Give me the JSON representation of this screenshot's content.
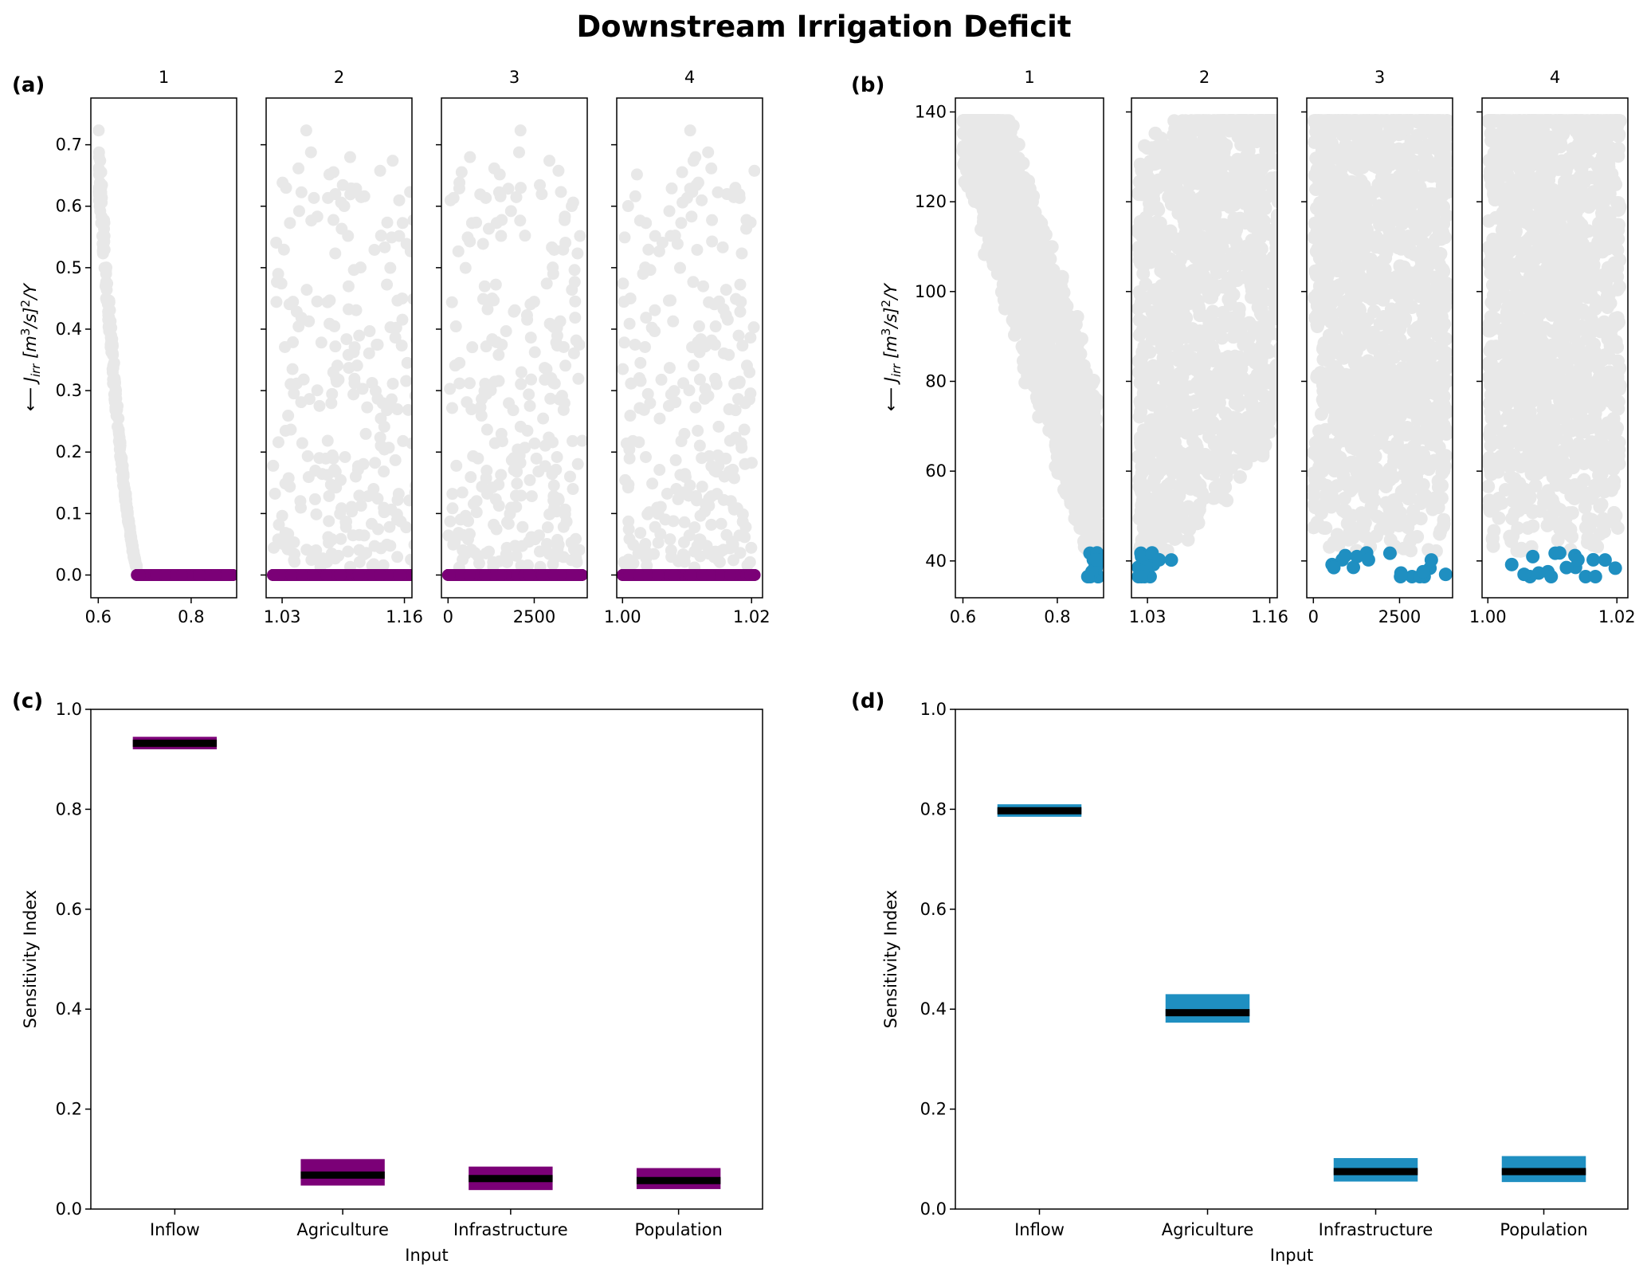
{
  "title": "Downstream Irrigation Deficit",
  "colors": {
    "background_points": "#e8e8e8",
    "purple": "#7b0077",
    "blue": "#1f8fc1",
    "median": "#000000"
  },
  "ylabel_top": {
    "arrow": "⟵ ",
    "symbol": "J",
    "sub": "irr",
    "a": " [m",
    "sup1": "3",
    "b": "/s]",
    "sup2": "2",
    "c": "/Y"
  },
  "chart_data": [
    {
      "id": "a",
      "panel_label": "(a)",
      "type": "scatter",
      "subplot_titles": [
        "1",
        "2",
        "3",
        "4"
      ],
      "ylim": [
        -0.037,
        0.776
      ],
      "yticks": [
        "0.0",
        "0.1",
        "0.2",
        "0.3",
        "0.4",
        "0.5",
        "0.6",
        "0.7"
      ],
      "ytick_values": [
        0,
        0.1,
        0.2,
        0.3,
        0.4,
        0.5,
        0.6,
        0.7
      ],
      "xlims": [
        [
          0.584,
          0.898
        ],
        [
          1.013,
          1.168
        ],
        [
          -192,
          4038
        ],
        [
          0.9991,
          1.0217
        ]
      ],
      "xticks": [
        [
          0.6,
          0.8
        ],
        [
          1.03,
          1.16
        ],
        [
          0,
          2500
        ],
        [
          1.0,
          1.02
        ]
      ],
      "xtick_labels": [
        [
          "0.6",
          "0.8"
        ],
        [
          "1.03",
          "1.16"
        ],
        [
          "0",
          "2500"
        ],
        [
          "1.00",
          "1.02"
        ]
      ],
      "n_points": 900,
      "highlight_rule": "J = 0 (purple)",
      "highlight_color": "#7b0077"
    },
    {
      "id": "b",
      "panel_label": "(b)",
      "type": "scatter",
      "subplot_titles": [
        "1",
        "2",
        "3",
        "4"
      ],
      "ylim": [
        31.8,
        143.1
      ],
      "yticks": [
        "40",
        "60",
        "80",
        "100",
        "120",
        "140"
      ],
      "ytick_values": [
        40,
        60,
        80,
        100,
        120,
        140
      ],
      "xlims": [
        [
          0.584,
          0.898
        ],
        [
          1.013,
          1.168
        ],
        [
          -192,
          4038
        ],
        [
          0.9991,
          1.0217
        ]
      ],
      "xticks": [
        [
          0.6,
          0.8
        ],
        [
          1.03,
          1.16
        ],
        [
          0,
          2500
        ],
        [
          1.0,
          1.02
        ]
      ],
      "xtick_labels": [
        [
          "0.6",
          "0.8"
        ],
        [
          "1.03",
          "1.16"
        ],
        [
          "0",
          "2500"
        ],
        [
          "1.00",
          "1.02"
        ]
      ],
      "n_points": 1600,
      "highlight_rule": "J <= 42 (blue)",
      "highlight_color": "#1f8fc1"
    },
    {
      "id": "c",
      "panel_label": "(c)",
      "type": "bar",
      "categories": [
        "Inflow",
        "Agriculture",
        "Infrastructure",
        "Population"
      ],
      "low": [
        0.92,
        0.047,
        0.038,
        0.04
      ],
      "high": [
        0.945,
        0.1,
        0.085,
        0.082
      ],
      "median": [
        0.932,
        0.068,
        0.061,
        0.057
      ],
      "color": "#7b0077",
      "ylim": [
        0,
        1
      ],
      "yticks": [
        "0.0",
        "0.2",
        "0.4",
        "0.6",
        "0.8",
        "1.0"
      ],
      "ytick_values": [
        0,
        0.2,
        0.4,
        0.6,
        0.8,
        1.0
      ],
      "xlabel": "Input",
      "ylabel": "Sensitivity Index"
    },
    {
      "id": "d",
      "panel_label": "(d)",
      "type": "bar",
      "categories": [
        "Inflow",
        "Agriculture",
        "Infrastructure",
        "Population"
      ],
      "low": [
        0.785,
        0.373,
        0.055,
        0.054
      ],
      "high": [
        0.81,
        0.43,
        0.102,
        0.106
      ],
      "median": [
        0.797,
        0.393,
        0.075,
        0.075
      ],
      "color": "#1f8fc1",
      "ylim": [
        0,
        1
      ],
      "yticks": [
        "0.0",
        "0.2",
        "0.4",
        "0.6",
        "0.8",
        "1.0"
      ],
      "ytick_values": [
        0,
        0.2,
        0.4,
        0.6,
        0.8,
        1.0
      ],
      "xlabel": "Input",
      "ylabel": "Sensitivity Index"
    }
  ]
}
